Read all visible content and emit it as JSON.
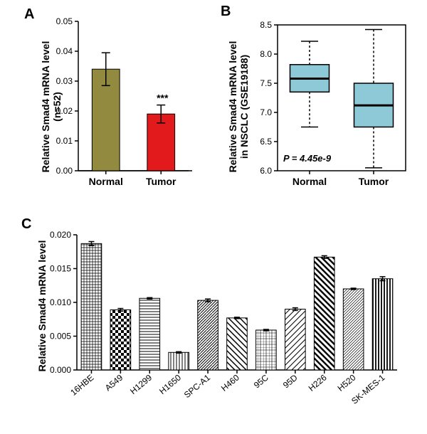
{
  "panelA": {
    "label": "A",
    "type": "bar",
    "ylabel_line1": "Relative Smad4 mRNA level",
    "ylabel_line2": "(n=52)",
    "ylim": [
      0,
      0.05
    ],
    "ytick_step": 0.01,
    "yticks": [
      "0.00",
      "0.01",
      "0.02",
      "0.03",
      "0.04",
      "0.05"
    ],
    "categories": [
      "Normal",
      "Tumor"
    ],
    "values": [
      0.034,
      0.019
    ],
    "error_low": [
      0.0055,
      0.003
    ],
    "error_high": [
      0.0055,
      0.003
    ],
    "bar_colors": [
      "#918a3f",
      "#e31a1c"
    ],
    "significance": "***",
    "significance_index": 1,
    "bar_width": 0.5,
    "background_color": "#ffffff"
  },
  "panelB": {
    "label": "B",
    "type": "boxplot",
    "ylabel_line1": "Relative Smad4 mRNA level",
    "ylabel_line2": "in NSCLC (GSE19188)",
    "ylim": [
      6.0,
      8.5
    ],
    "ytick_step": 0.5,
    "yticks": [
      "6.0",
      "6.5",
      "7.0",
      "7.5",
      "8.0",
      "8.5"
    ],
    "categories": [
      "Normal",
      "Tumor"
    ],
    "boxes": [
      {
        "q1": 7.35,
        "median": 7.58,
        "q3": 7.82,
        "whisker_low": 6.75,
        "whisker_high": 8.22
      },
      {
        "q1": 6.75,
        "median": 7.12,
        "q3": 7.5,
        "whisker_low": 6.05,
        "whisker_high": 8.42
      }
    ],
    "box_color": "#8ec9d8",
    "p_value": "P = 4.45e-9",
    "background_color": "#ffffff",
    "frame_border_width": 1.5
  },
  "panelC": {
    "label": "C",
    "type": "bar",
    "ylabel": "Relative Smad4 mRNA level",
    "ylim": [
      0,
      0.02
    ],
    "ytick_step": 0.005,
    "yticks": [
      "0.000",
      "0.005",
      "0.010",
      "0.015",
      "0.020"
    ],
    "categories": [
      "16HBE",
      "A549",
      "H1299",
      "H1650",
      "SPC-A1",
      "H460",
      "95C",
      "95D",
      "H226",
      "H520",
      "SK-MES-1"
    ],
    "values": [
      0.0187,
      0.0089,
      0.0106,
      0.0026,
      0.0103,
      0.0077,
      0.0059,
      0.009,
      0.0167,
      0.012,
      0.0135
    ],
    "errors": [
      0.0003,
      0.0002,
      0.0001,
      0.0001,
      0.0002,
      0.0001,
      0.0001,
      0.0002,
      0.0002,
      0.0001,
      0.0003
    ],
    "patterns": [
      "grid",
      "checker",
      "hstripe",
      "vstripe",
      "diag-down",
      "diag-wide",
      "grid-small",
      "diag-up",
      "diag-thick",
      "diag-thin",
      "vstripe-thick"
    ],
    "bar_width": 0.7,
    "background_color": "#ffffff",
    "x_label_rotation": -40
  }
}
